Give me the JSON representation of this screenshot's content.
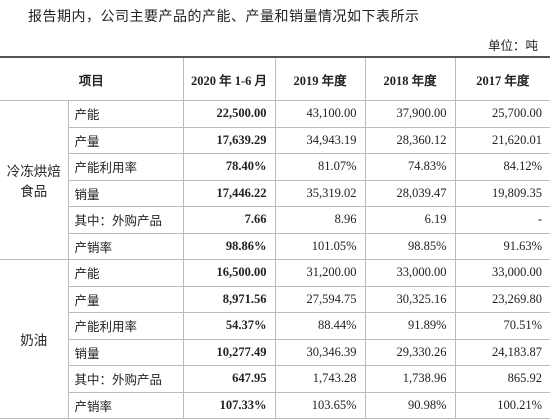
{
  "header": {
    "title": "报告期内，公司主要产品的产能、产量和销量情况如下表所示",
    "unit": "单位：吨"
  },
  "table": {
    "columns": [
      "项目",
      "2020 年 1-6 月",
      "2019 年度",
      "2018 年度",
      "2017 年度"
    ],
    "groups": [
      {
        "name": "冷冻烘焙食品",
        "rows": [
          {
            "label": "产能",
            "values": [
              "22,500.00",
              "43,100.00",
              "37,900.00",
              "25,700.00"
            ]
          },
          {
            "label": "产量",
            "values": [
              "17,639.29",
              "34,943.19",
              "28,360.12",
              "21,620.01"
            ]
          },
          {
            "label": "产能利用率",
            "values": [
              "78.40%",
              "81.07%",
              "74.83%",
              "84.12%"
            ]
          },
          {
            "label": "销量",
            "values": [
              "17,446.22",
              "35,319.02",
              "28,039.47",
              "19,809.35"
            ]
          },
          {
            "label": "其中：外购产品",
            "values": [
              "7.66",
              "8.96",
              "6.19",
              "-"
            ]
          },
          {
            "label": "产销率",
            "values": [
              "98.86%",
              "101.05%",
              "98.85%",
              "91.63%"
            ]
          }
        ]
      },
      {
        "name": "奶油",
        "rows": [
          {
            "label": "产能",
            "values": [
              "16,500.00",
              "31,200.00",
              "33,000.00",
              "33,000.00"
            ]
          },
          {
            "label": "产量",
            "values": [
              "8,971.56",
              "27,594.75",
              "30,325.16",
              "23,269.80"
            ]
          },
          {
            "label": "产能利用率",
            "values": [
              "54.37%",
              "88.44%",
              "91.89%",
              "70.51%"
            ]
          },
          {
            "label": "销量",
            "values": [
              "10,277.49",
              "30,346.39",
              "29,330.26",
              "24,183.87"
            ]
          },
          {
            "label": "其中：外购产品",
            "values": [
              "647.95",
              "1,743.28",
              "1,738.96",
              "865.92"
            ]
          },
          {
            "label": "产销率",
            "values": [
              "107.33%",
              "103.65%",
              "90.98%",
              "100.21%"
            ]
          }
        ]
      }
    ]
  }
}
